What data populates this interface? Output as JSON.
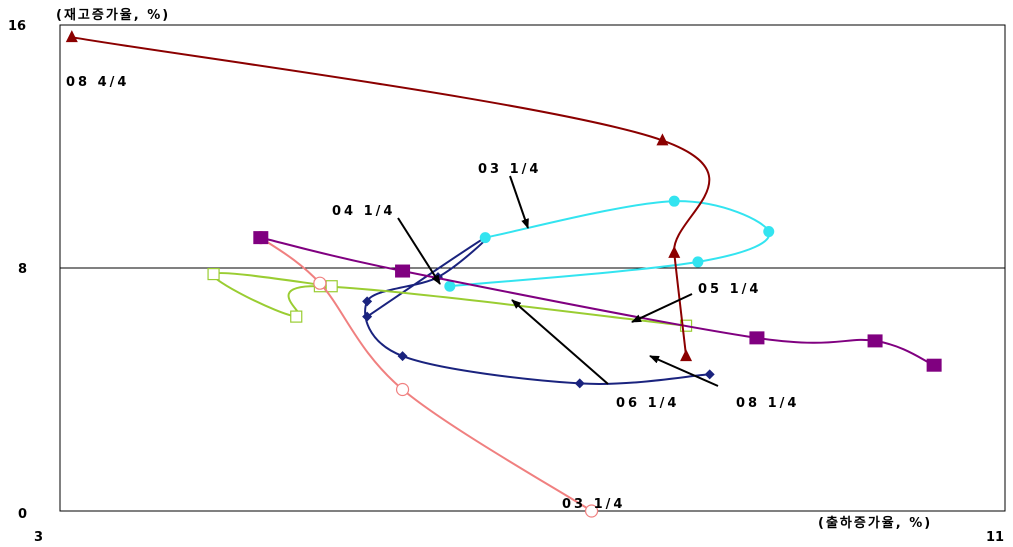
{
  "chart_data": {
    "type": "line",
    "title": "",
    "ylabel": "(재고증가율, %)",
    "xlabel": "(출하증가율, %)",
    "xlim": [
      3,
      11
    ],
    "ylim": [
      0,
      16
    ],
    "x_ticks": [
      "3",
      "11"
    ],
    "y_ticks": [
      "0",
      "8",
      "16"
    ],
    "reference_line_y": 8,
    "series": [
      {
        "marker": "diamond",
        "color": "#1a237e",
        "points": [
          [
            5.6,
            6.4
          ],
          [
            6.6,
            9.0
          ],
          [
            6.2,
            7.7
          ],
          [
            5.6,
            6.9
          ],
          [
            5.9,
            5.1
          ],
          [
            7.4,
            4.2
          ],
          [
            8.5,
            4.5
          ]
        ]
      },
      {
        "marker": "circle",
        "color": "#33e4f0",
        "points": [
          [
            6.6,
            9.0
          ],
          [
            8.2,
            10.2
          ],
          [
            9.0,
            9.2
          ],
          [
            8.4,
            8.2
          ],
          [
            6.3,
            7.4
          ]
        ]
      },
      {
        "marker": "square-open",
        "color": "#9acd32",
        "points": [
          [
            5.3,
            7.4
          ],
          [
            4.3,
            7.8
          ],
          [
            5.0,
            6.4
          ],
          [
            5.2,
            7.4
          ],
          [
            8.3,
            6.1
          ]
        ]
      },
      {
        "marker": "circle-open",
        "color": "#f08080",
        "points": [
          [
            4.7,
            9.0
          ],
          [
            5.2,
            7.5
          ],
          [
            5.9,
            4.0
          ],
          [
            7.5,
            0.0
          ]
        ]
      },
      {
        "marker": "square",
        "color": "#800080",
        "points": [
          [
            4.7,
            9.0
          ],
          [
            5.9,
            7.9
          ],
          [
            8.9,
            5.7
          ],
          [
            9.9,
            5.6
          ],
          [
            10.4,
            4.8
          ]
        ]
      },
      {
        "marker": "triangle",
        "color": "#8b0000",
        "points": [
          [
            8.3,
            5.1
          ],
          [
            8.2,
            8.5
          ],
          [
            8.1,
            12.2
          ],
          [
            3.1,
            15.6
          ]
        ]
      }
    ],
    "annotations": [
      {
        "text": "08 4/4"
      },
      {
        "text": "03 1/4"
      },
      {
        "text": "04 1/4"
      },
      {
        "text": "05 1/4"
      },
      {
        "text": "06 1/4"
      },
      {
        "text": "08 1/4"
      },
      {
        "text": "03 1/4"
      }
    ]
  }
}
